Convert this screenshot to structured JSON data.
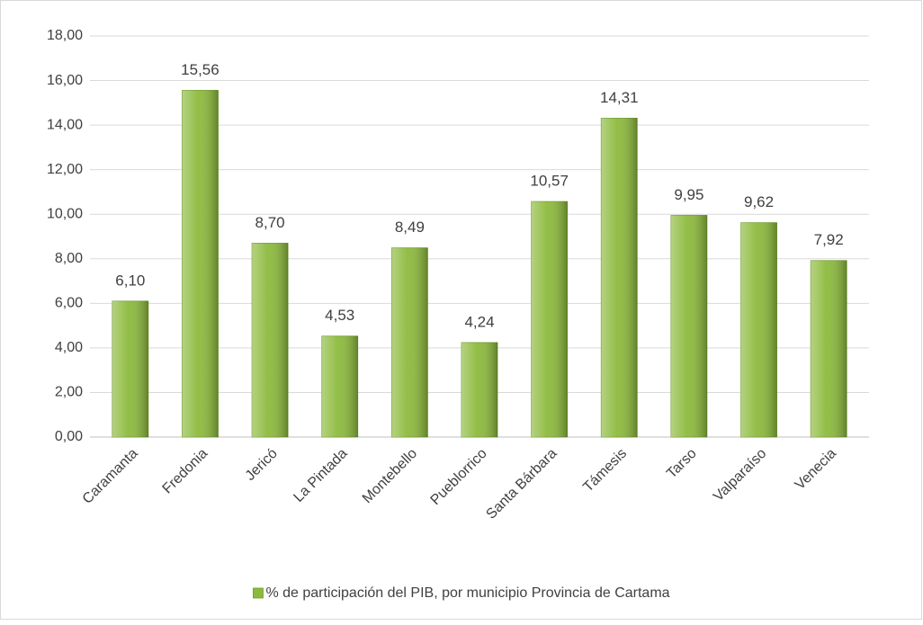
{
  "chart_data": {
    "type": "bar",
    "categories": [
      "Caramanta",
      "Fredonia",
      "Jericó",
      "La Pintada",
      "Montebello",
      "Pueblorrico",
      "Santa Bárbara",
      "Támesis",
      "Tarso",
      "Valparaíso",
      "Venecia"
    ],
    "series": [
      {
        "name": "% de participación del PIB, por municipio Provincia de Cartama",
        "color": "#8cba3c",
        "values": [
          6.1,
          15.56,
          8.7,
          4.53,
          8.49,
          4.24,
          10.57,
          14.31,
          9.95,
          9.62,
          7.92
        ],
        "value_labels": [
          "6,10",
          "15,56",
          "8,70",
          "4,53",
          "8,49",
          "4,24",
          "10,57",
          "14,31",
          "9,95",
          "9,62",
          "7,92"
        ]
      }
    ],
    "ylim": [
      0,
      18
    ],
    "yticks": [
      {
        "value": 0,
        "label": "0,00"
      },
      {
        "value": 2,
        "label": "2,00"
      },
      {
        "value": 4,
        "label": "4,00"
      },
      {
        "value": 6,
        "label": "6,00"
      },
      {
        "value": 8,
        "label": "8,00"
      },
      {
        "value": 10,
        "label": "10,00"
      },
      {
        "value": 12,
        "label": "12,00"
      },
      {
        "value": 14,
        "label": "14,00"
      },
      {
        "value": 16,
        "label": "16,00"
      },
      {
        "value": 18,
        "label": "18,00"
      }
    ],
    "grid": true,
    "legend": "bottom"
  }
}
